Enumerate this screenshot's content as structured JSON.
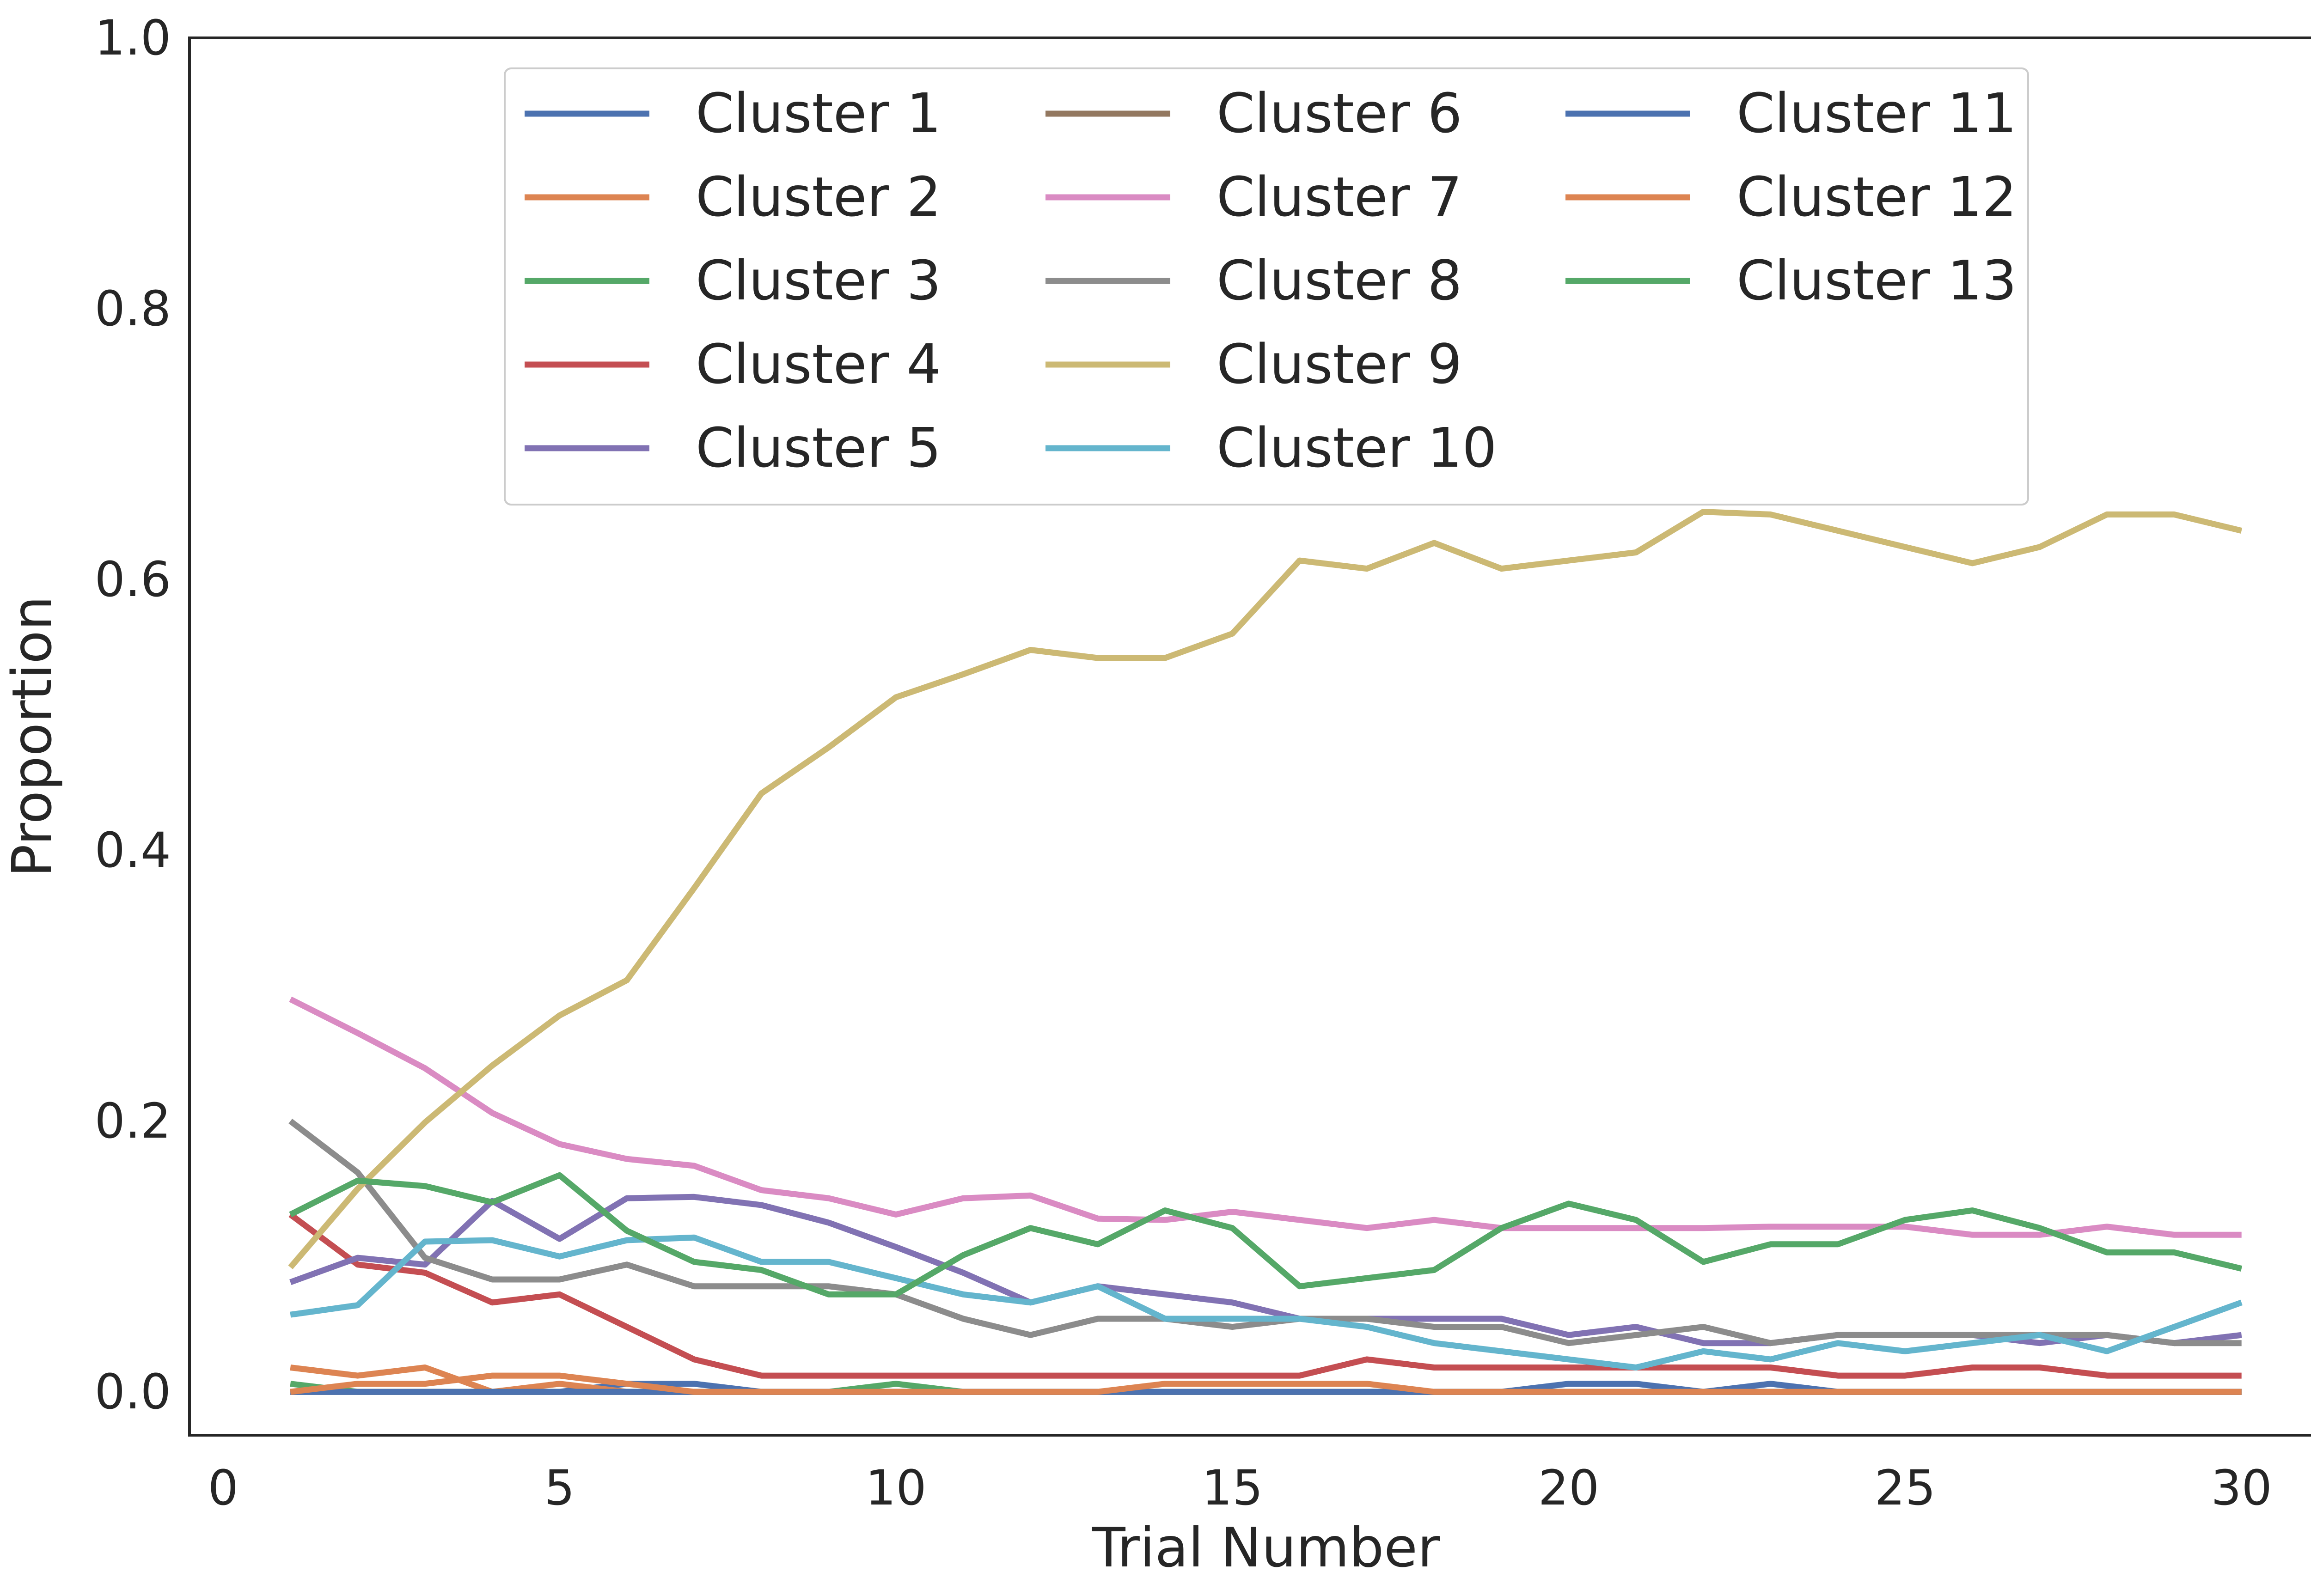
{
  "chart_data": {
    "type": "line",
    "title": "",
    "xlabel": "Trial Number",
    "ylabel": "Proportion",
    "xlim": [
      -0.5,
      31.5
    ],
    "ylim": [
      -0.032,
      1.0
    ],
    "xticks": [
      "0",
      "5",
      "10",
      "15",
      "20",
      "25",
      "30"
    ],
    "xtick_values": [
      0,
      5,
      10,
      15,
      20,
      25,
      30
    ],
    "yticks": [
      "0.0",
      "0.2",
      "0.4",
      "0.6",
      "0.8",
      "1.0"
    ],
    "ytick_values": [
      0.0,
      0.2,
      0.4,
      0.6,
      0.8,
      1.0
    ],
    "grid": false,
    "legend_position": "upper center",
    "legend_columns": 3,
    "x": [
      1,
      2,
      3,
      4,
      5,
      6,
      7,
      8,
      9,
      10,
      11,
      12,
      13,
      14,
      15,
      16,
      17,
      18,
      19,
      20,
      21,
      22,
      23,
      24,
      25,
      26,
      27,
      28,
      29,
      30
    ],
    "series": [
      {
        "name": "Cluster 1",
        "color": "#4c72b0",
        "values": [
          0,
          0,
          0,
          0,
          0,
          0.006,
          0.006,
          0,
          0,
          0,
          0,
          0,
          0,
          0,
          0,
          0,
          0,
          0,
          0,
          0.006,
          0.006,
          0,
          0.006,
          0,
          0,
          0,
          0,
          0,
          0,
          0
        ]
      },
      {
        "name": "Cluster 2",
        "color": "#dd8452",
        "values": [
          0.018,
          0.012,
          0.018,
          0,
          0.006,
          0,
          0,
          0,
          0,
          0,
          0,
          0,
          0,
          0,
          0,
          0,
          0,
          0,
          0,
          0,
          0,
          0,
          0,
          0,
          0,
          0,
          0,
          0,
          0,
          0
        ]
      },
      {
        "name": "Cluster 3",
        "color": "#55a868",
        "values": [
          0.006,
          0,
          0,
          0,
          0,
          0,
          0,
          0,
          0,
          0.006,
          0,
          0,
          0,
          0,
          0,
          0,
          0,
          0,
          0,
          0,
          0,
          0,
          0,
          0,
          0,
          0,
          0,
          0,
          0,
          0
        ]
      },
      {
        "name": "Cluster 4",
        "color": "#c44e52",
        "values": [
          0.131,
          0.094,
          0.088,
          0.066,
          0.072,
          0.048,
          0.024,
          0.012,
          0.012,
          0.012,
          0.012,
          0.012,
          0.012,
          0.012,
          0.012,
          0.012,
          0.024,
          0.018,
          0.018,
          0.018,
          0.018,
          0.018,
          0.018,
          0.012,
          0.012,
          0.018,
          0.018,
          0.012,
          0.012,
          0.012
        ]
      },
      {
        "name": "Cluster 5",
        "color": "#8172b3",
        "values": [
          0.081,
          0.099,
          0.094,
          0.141,
          0.113,
          0.143,
          0.144,
          0.138,
          0.125,
          0.107,
          0.088,
          0.066,
          0.078,
          0.072,
          0.066,
          0.054,
          0.054,
          0.054,
          0.054,
          0.042,
          0.048,
          0.036,
          0.036,
          0.042,
          0.042,
          0.042,
          0.036,
          0.042,
          0.036,
          0.042
        ]
      },
      {
        "name": "Cluster 6",
        "color": "#937860",
        "values": [
          0,
          0,
          0,
          0,
          0,
          0,
          0,
          0,
          0,
          0,
          0,
          0,
          0,
          0,
          0,
          0,
          0,
          0,
          0,
          0,
          0,
          0,
          0,
          0,
          0,
          0,
          0,
          0,
          0,
          0
        ]
      },
      {
        "name": "Cluster 7",
        "color": "#da8bc3",
        "values": [
          0.29,
          0.265,
          0.239,
          0.206,
          0.183,
          0.172,
          0.167,
          0.149,
          0.143,
          0.131,
          0.143,
          0.145,
          0.128,
          0.127,
          0.133,
          0.127,
          0.121,
          0.127,
          0.121,
          0.121,
          0.121,
          0.121,
          0.122,
          0.122,
          0.122,
          0.116,
          0.116,
          0.122,
          0.116,
          0.116
        ]
      },
      {
        "name": "Cluster 8",
        "color": "#8c8c8c",
        "values": [
          0.2,
          0.162,
          0.099,
          0.083,
          0.083,
          0.094,
          0.078,
          0.078,
          0.078,
          0.072,
          0.054,
          0.042,
          0.054,
          0.054,
          0.048,
          0.054,
          0.054,
          0.048,
          0.048,
          0.036,
          0.042,
          0.048,
          0.036,
          0.042,
          0.042,
          0.042,
          0.042,
          0.042,
          0.036,
          0.036
        ]
      },
      {
        "name": "Cluster 9",
        "color": "#ccb974",
        "values": [
          0.092,
          0.15,
          0.199,
          0.241,
          0.278,
          0.304,
          0.372,
          0.442,
          0.476,
          0.513,
          0.53,
          0.548,
          0.542,
          0.542,
          0.56,
          0.614,
          0.608,
          0.627,
          0.608,
          0.614,
          0.62,
          0.65,
          0.648,
          0.636,
          0.624,
          0.612,
          0.624,
          0.648,
          0.648,
          0.636
        ]
      },
      {
        "name": "Cluster 10",
        "color": "#64b5cd",
        "values": [
          0.057,
          0.064,
          0.111,
          0.112,
          0.1,
          0.112,
          0.114,
          0.096,
          0.096,
          0.084,
          0.072,
          0.066,
          0.078,
          0.054,
          0.054,
          0.054,
          0.048,
          0.036,
          0.03,
          0.024,
          0.018,
          0.03,
          0.024,
          0.036,
          0.03,
          0.036,
          0.042,
          0.03,
          0.048,
          0.066
        ]
      },
      {
        "name": "Cluster 11",
        "color": "#4c72b0",
        "values": [
          0,
          0,
          0,
          0,
          0,
          0,
          0,
          0,
          0,
          0,
          0,
          0,
          0,
          0,
          0,
          0,
          0,
          0,
          0,
          0,
          0,
          0,
          0,
          0,
          0,
          0,
          0,
          0,
          0,
          0
        ]
      },
      {
        "name": "Cluster 12",
        "color": "#dd8452",
        "values": [
          0,
          0.006,
          0.006,
          0.012,
          0.012,
          0.006,
          0,
          0,
          0,
          0,
          0,
          0,
          0,
          0.006,
          0.006,
          0.006,
          0.006,
          0,
          0,
          0,
          0,
          0,
          0,
          0,
          0,
          0,
          0,
          0,
          0,
          0
        ]
      },
      {
        "name": "Cluster 13",
        "color": "#55a868",
        "values": [
          0.131,
          0.156,
          0.152,
          0.14,
          0.16,
          0.119,
          0.096,
          0.09,
          0.072,
          0.072,
          0.101,
          0.121,
          0.109,
          0.134,
          0.121,
          0.078,
          0.084,
          0.09,
          0.121,
          0.139,
          0.127,
          0.096,
          0.109,
          0.109,
          0.127,
          0.134,
          0.121,
          0.103,
          0.103,
          0.091
        ]
      }
    ]
  }
}
